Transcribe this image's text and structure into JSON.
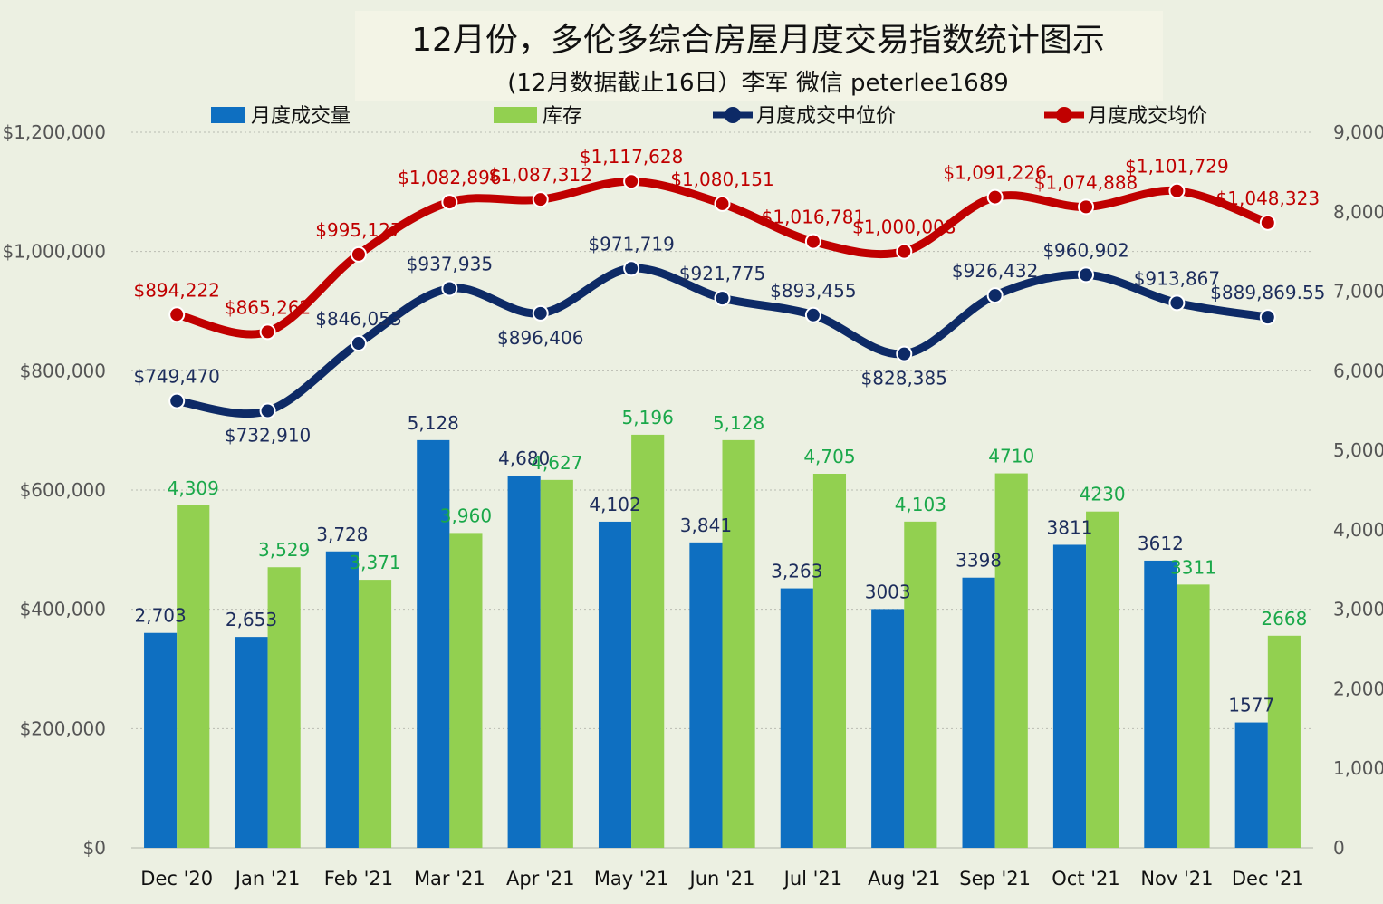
{
  "chart_data": {
    "type": "bar",
    "title": "12月份，多伦多综合房屋月度交易指数统计图示",
    "subtitle": "(12月数据截止16日）李军  微信 peterlee1689",
    "categories": [
      "Dec '20",
      "Jan '21",
      "Feb '21",
      "Mar '21",
      "Apr '21",
      "May '21",
      "Jun '21",
      "Jul '21",
      "Aug '21",
      "Sep '21",
      "Oct '21",
      "Nov '21",
      "Dec '21"
    ],
    "y_left": {
      "min": 0,
      "max": 1200000,
      "ticks": [
        "$0",
        "$200,000",
        "$400,000",
        "$600,000",
        "$800,000",
        "$1,000,000",
        "$1,200,000"
      ]
    },
    "y_right": {
      "min": 0,
      "max": 9000,
      "ticks": [
        "0",
        "1,000",
        "2,000",
        "3,000",
        "4,000",
        "5,000",
        "6,000",
        "7,000",
        "8,000",
        "9,000"
      ]
    },
    "grid": true,
    "legend_position": "top",
    "series": [
      {
        "name": "月度成交量",
        "kind": "bar",
        "axis": "right",
        "color": "#0e6fc1",
        "label_color": "#1d2d5c",
        "values": [
          2703,
          2653,
          3728,
          5128,
          4680,
          4102,
          3841,
          3263,
          3003,
          3398,
          3811,
          3612,
          1577
        ],
        "labels": [
          "2,703",
          "2,653",
          "3,728",
          "5,128",
          "4,680",
          "4,102",
          "3,841",
          "3,263",
          "3003",
          "3398",
          "3811",
          "3612",
          "1577"
        ]
      },
      {
        "name": "库存",
        "kind": "bar",
        "axis": "right",
        "color": "#92d050",
        "label_color": "#1aa84a",
        "values": [
          4309,
          3529,
          3371,
          3960,
          4627,
          5196,
          5128,
          4705,
          4103,
          4710,
          4230,
          3311,
          2668
        ],
        "labels": [
          "4,309",
          "3,529",
          "3,371",
          "3,960",
          "4,627",
          "5,196",
          "5,128",
          "4,705",
          "4,103",
          "4710",
          "4230",
          "3311",
          "2668"
        ]
      },
      {
        "name": "月度成交中位价",
        "kind": "line",
        "axis": "left",
        "color": "#0d2a66",
        "label_color": "#1d2d5c",
        "values": [
          749470,
          732910,
          846053,
          937935,
          896406,
          971719,
          921775,
          893455,
          828385,
          926432,
          960902,
          913867,
          889869.55
        ],
        "labels": [
          "$749,470",
          "$732,910",
          "$846,053",
          "$937,935",
          "$896,406",
          "$971,719",
          "$921,775",
          "$893,455",
          "$828,385",
          "$926,432",
          "$960,902",
          "$913,867",
          "$889,869.55"
        ]
      },
      {
        "name": "月度成交均价",
        "kind": "line",
        "axis": "left",
        "color": "#c00000",
        "label_color": "#c00000",
        "values": [
          894222,
          865262,
          995127,
          1082896,
          1087312,
          1117628,
          1080151,
          1016781,
          1000008,
          1091226,
          1074888,
          1101729,
          1048323
        ],
        "labels": [
          "$894,222",
          "$865,262",
          "$995,127",
          "$1,082,896",
          "$1,087,312",
          "$1,117,628",
          "$1,080,151",
          "$1,016,781",
          "$1,000,008",
          "$1,091,226",
          "$1,074,888",
          "$1,101,729",
          "$1,048,323"
        ]
      }
    ]
  }
}
